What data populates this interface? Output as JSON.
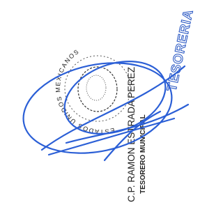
{
  "stamp": {
    "name": "C.P. RAMON ESTRADA PEREZ",
    "position": "TESORERO MUNICIPAL",
    "office": "TESORERIA",
    "seal_text": "ESTADOS UNIDOS MEXICANOS"
  }
}
